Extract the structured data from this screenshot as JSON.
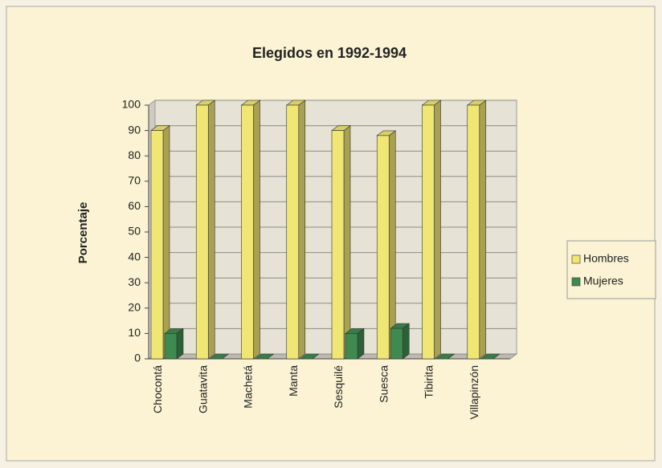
{
  "chart_data": {
    "type": "bar3d",
    "title": "Elegidos en 1992-1994",
    "y_label": "Porcentaje",
    "categories": [
      "Chocontá",
      "Guatavita",
      "Machetá",
      "Manta",
      "Sesquilé",
      "Suesca",
      "Tibirita",
      "Villapinzón"
    ],
    "series": [
      {
        "name": "Hombres",
        "color": "#efe674",
        "values": [
          90,
          100,
          100,
          100,
          90,
          88,
          100,
          100
        ]
      },
      {
        "name": "Mujeres",
        "color": "#3f8a50",
        "values": [
          10,
          0,
          0,
          0,
          10,
          12,
          0,
          0
        ]
      }
    ],
    "ylim": [
      0,
      100
    ],
    "yticks": [
      0,
      10,
      20,
      30,
      40,
      50,
      60,
      70,
      80,
      90,
      100
    ],
    "grid": true,
    "legend": "right"
  }
}
